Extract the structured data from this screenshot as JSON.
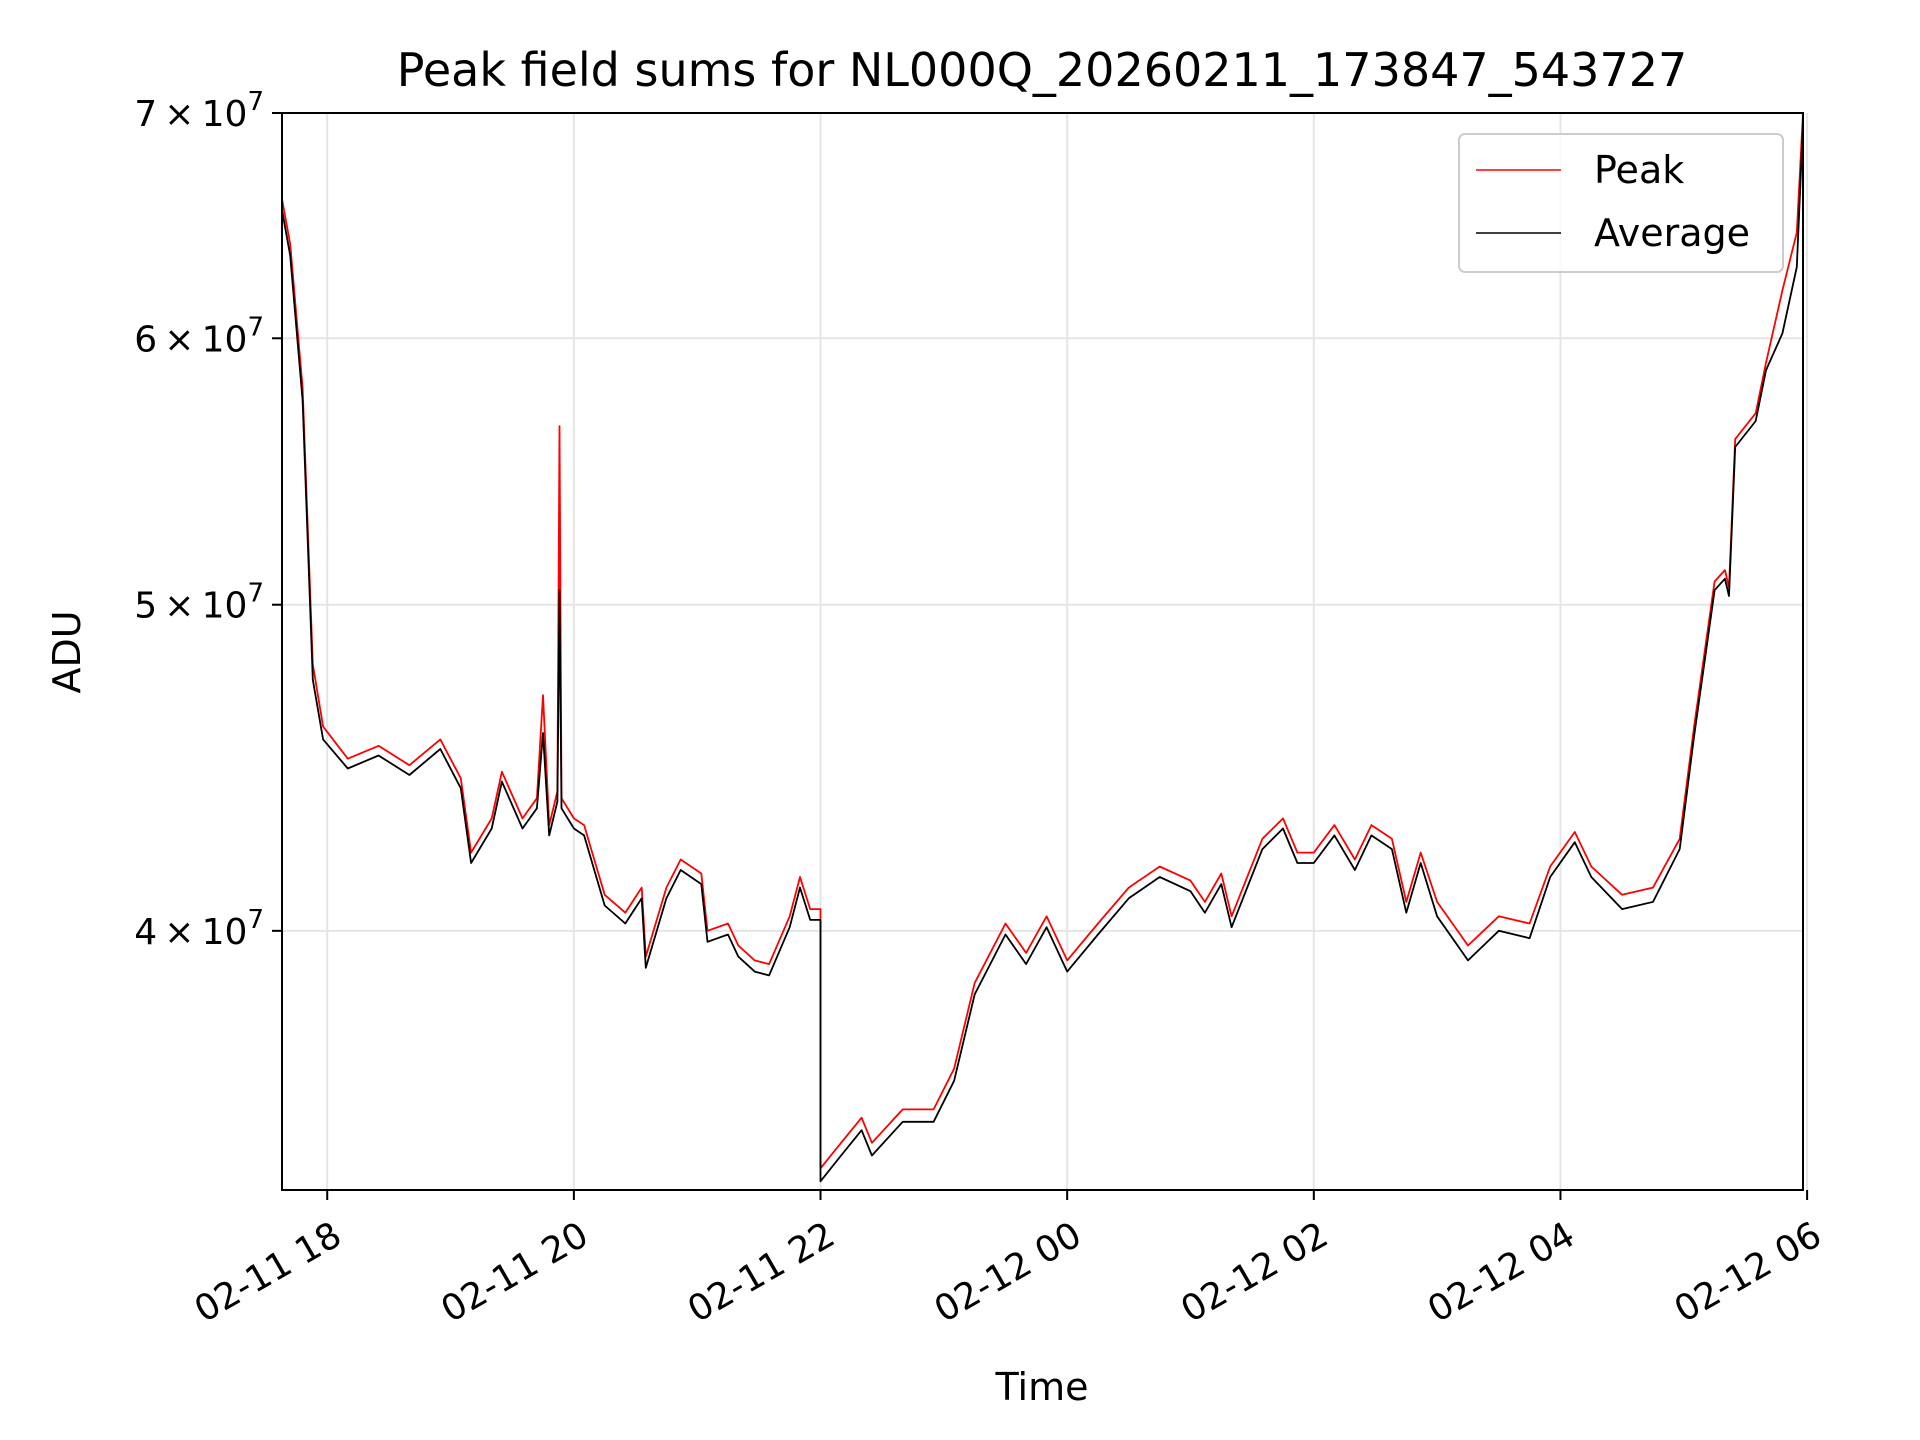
{
  "chart_data": {
    "type": "line",
    "title": "Peak field sums for NL000Q_20260211_173847_543727",
    "xlabel": "Time",
    "ylabel": "ADU",
    "yscale": "log",
    "ylim": [
      33500000,
      70000000
    ],
    "xlim": [
      "2026-02-11 17:38",
      "2026-02-12 05:58"
    ],
    "grid": true,
    "legend_position": "top-right",
    "x_ticks": [
      {
        "value": "2026-02-11 18:00",
        "label": "02-11 18"
      },
      {
        "value": "2026-02-11 20:00",
        "label": "02-11 20"
      },
      {
        "value": "2026-02-11 22:00",
        "label": "02-11 22"
      },
      {
        "value": "2026-02-12 00:00",
        "label": "02-12 00"
      },
      {
        "value": "2026-02-12 02:00",
        "label": "02-12 02"
      },
      {
        "value": "2026-02-12 04:00",
        "label": "02-12 04"
      },
      {
        "value": "2026-02-12 06:00",
        "label": "02-12 06"
      }
    ],
    "y_ticks": [
      {
        "value": 40000000,
        "mantissa": "4",
        "exponent": "7"
      },
      {
        "value": 50000000,
        "mantissa": "5",
        "exponent": "7"
      },
      {
        "value": 60000000,
        "mantissa": "6",
        "exponent": "7"
      },
      {
        "value": 70000000,
        "mantissa": "7",
        "exponent": "7"
      }
    ],
    "series": [
      {
        "name": "Peak",
        "color": "#ff0000",
        "points": [
          [
            "2026-02-11 17:38",
            66000000
          ],
          [
            "2026-02-11 17:42",
            64000000
          ],
          [
            "2026-02-11 17:48",
            58000000
          ],
          [
            "2026-02-11 17:53",
            48000000
          ],
          [
            "2026-02-11 17:58",
            46000000
          ],
          [
            "2026-02-11 18:10",
            45000000
          ],
          [
            "2026-02-11 18:25",
            45400000
          ],
          [
            "2026-02-11 18:40",
            44800000
          ],
          [
            "2026-02-11 18:55",
            45600000
          ],
          [
            "2026-02-11 19:05",
            44400000
          ],
          [
            "2026-02-11 19:10",
            42200000
          ],
          [
            "2026-02-11 19:20",
            43200000
          ],
          [
            "2026-02-11 19:25",
            44600000
          ],
          [
            "2026-02-11 19:35",
            43200000
          ],
          [
            "2026-02-11 19:42",
            43800000
          ],
          [
            "2026-02-11 19:45",
            47000000
          ],
          [
            "2026-02-11 19:48",
            43000000
          ],
          [
            "2026-02-11 19:52",
            44000000
          ],
          [
            "2026-02-11 19:53",
            56500000
          ],
          [
            "2026-02-11 19:54",
            43800000
          ],
          [
            "2026-02-11 20:00",
            43200000
          ],
          [
            "2026-02-11 20:05",
            43000000
          ],
          [
            "2026-02-11 20:15",
            41000000
          ],
          [
            "2026-02-11 20:25",
            40500000
          ],
          [
            "2026-02-11 20:33",
            41200000
          ],
          [
            "2026-02-11 20:35",
            39300000
          ],
          [
            "2026-02-11 20:45",
            41200000
          ],
          [
            "2026-02-11 20:52",
            42000000
          ],
          [
            "2026-02-11 21:02",
            41600000
          ],
          [
            "2026-02-11 21:05",
            40000000
          ],
          [
            "2026-02-11 21:15",
            40200000
          ],
          [
            "2026-02-11 21:20",
            39600000
          ],
          [
            "2026-02-11 21:28",
            39200000
          ],
          [
            "2026-02-11 21:35",
            39100000
          ],
          [
            "2026-02-11 21:45",
            40400000
          ],
          [
            "2026-02-11 21:50",
            41500000
          ],
          [
            "2026-02-11 21:55",
            40600000
          ],
          [
            "2026-02-11 22:00",
            40600000
          ],
          [
            "2026-02-11 22:00",
            34000000
          ],
          [
            "2026-02-11 22:10",
            34600000
          ],
          [
            "2026-02-11 22:20",
            35200000
          ],
          [
            "2026-02-11 22:25",
            34600000
          ],
          [
            "2026-02-11 22:40",
            35400000
          ],
          [
            "2026-02-11 22:55",
            35400000
          ],
          [
            "2026-02-11 23:05",
            36400000
          ],
          [
            "2026-02-11 23:15",
            38600000
          ],
          [
            "2026-02-11 23:30",
            40200000
          ],
          [
            "2026-02-11 23:40",
            39400000
          ],
          [
            "2026-02-11 23:50",
            40400000
          ],
          [
            "2026-02-12 00:00",
            39200000
          ],
          [
            "2026-02-12 00:15",
            40200000
          ],
          [
            "2026-02-12 00:30",
            41200000
          ],
          [
            "2026-02-12 00:45",
            41800000
          ],
          [
            "2026-02-12 01:00",
            41400000
          ],
          [
            "2026-02-12 01:07",
            40800000
          ],
          [
            "2026-02-12 01:15",
            41600000
          ],
          [
            "2026-02-12 01:20",
            40400000
          ],
          [
            "2026-02-12 01:35",
            42600000
          ],
          [
            "2026-02-12 01:45",
            43200000
          ],
          [
            "2026-02-12 01:52",
            42200000
          ],
          [
            "2026-02-12 02:00",
            42200000
          ],
          [
            "2026-02-12 02:10",
            43000000
          ],
          [
            "2026-02-12 02:20",
            42000000
          ],
          [
            "2026-02-12 02:28",
            43000000
          ],
          [
            "2026-02-12 02:38",
            42600000
          ],
          [
            "2026-02-12 02:45",
            40800000
          ],
          [
            "2026-02-12 02:52",
            42200000
          ],
          [
            "2026-02-12 03:00",
            40800000
          ],
          [
            "2026-02-12 03:15",
            39600000
          ],
          [
            "2026-02-12 03:30",
            40400000
          ],
          [
            "2026-02-12 03:45",
            40200000
          ],
          [
            "2026-02-12 03:55",
            41800000
          ],
          [
            "2026-02-12 04:07",
            42800000
          ],
          [
            "2026-02-12 04:15",
            41800000
          ],
          [
            "2026-02-12 04:30",
            41000000
          ],
          [
            "2026-02-12 04:45",
            41200000
          ],
          [
            "2026-02-12 04:58",
            42600000
          ],
          [
            "2026-02-12 05:05",
            46000000
          ],
          [
            "2026-02-12 05:15",
            50800000
          ],
          [
            "2026-02-12 05:20",
            51200000
          ],
          [
            "2026-02-12 05:22",
            50600000
          ],
          [
            "2026-02-12 05:25",
            56000000
          ],
          [
            "2026-02-12 05:35",
            57000000
          ],
          [
            "2026-02-12 05:40",
            59000000
          ],
          [
            "2026-02-12 05:48",
            62000000
          ],
          [
            "2026-02-12 05:55",
            64500000
          ],
          [
            "2026-02-12 05:58",
            70000000
          ]
        ]
      },
      {
        "name": "Average",
        "color": "#000000",
        "points": [
          [
            "2026-02-11 17:38",
            65500000
          ],
          [
            "2026-02-11 17:42",
            63500000
          ],
          [
            "2026-02-11 17:48",
            57500000
          ],
          [
            "2026-02-11 17:53",
            47500000
          ],
          [
            "2026-02-11 17:58",
            45600000
          ],
          [
            "2026-02-11 18:10",
            44700000
          ],
          [
            "2026-02-11 18:25",
            45100000
          ],
          [
            "2026-02-11 18:40",
            44500000
          ],
          [
            "2026-02-11 18:55",
            45300000
          ],
          [
            "2026-02-11 19:05",
            44100000
          ],
          [
            "2026-02-11 19:10",
            41900000
          ],
          [
            "2026-02-11 19:20",
            42900000
          ],
          [
            "2026-02-11 19:25",
            44300000
          ],
          [
            "2026-02-11 19:35",
            42900000
          ],
          [
            "2026-02-11 19:42",
            43500000
          ],
          [
            "2026-02-11 19:45",
            45800000
          ],
          [
            "2026-02-11 19:48",
            42700000
          ],
          [
            "2026-02-11 19:52",
            43700000
          ],
          [
            "2026-02-11 19:53",
            50500000
          ],
          [
            "2026-02-11 19:54",
            43500000
          ],
          [
            "2026-02-11 20:00",
            42900000
          ],
          [
            "2026-02-11 20:05",
            42700000
          ],
          [
            "2026-02-11 20:15",
            40700000
          ],
          [
            "2026-02-11 20:25",
            40200000
          ],
          [
            "2026-02-11 20:33",
            40900000
          ],
          [
            "2026-02-11 20:35",
            39000000
          ],
          [
            "2026-02-11 20:45",
            40900000
          ],
          [
            "2026-02-11 20:52",
            41700000
          ],
          [
            "2026-02-11 21:02",
            41300000
          ],
          [
            "2026-02-11 21:05",
            39700000
          ],
          [
            "2026-02-11 21:15",
            39900000
          ],
          [
            "2026-02-11 21:20",
            39300000
          ],
          [
            "2026-02-11 21:28",
            38900000
          ],
          [
            "2026-02-11 21:35",
            38800000
          ],
          [
            "2026-02-11 21:45",
            40100000
          ],
          [
            "2026-02-11 21:50",
            41200000
          ],
          [
            "2026-02-11 21:55",
            40300000
          ],
          [
            "2026-02-11 22:00",
            40300000
          ],
          [
            "2026-02-11 22:00",
            33700000
          ],
          [
            "2026-02-11 22:10",
            34300000
          ],
          [
            "2026-02-11 22:20",
            34900000
          ],
          [
            "2026-02-11 22:25",
            34300000
          ],
          [
            "2026-02-11 22:40",
            35100000
          ],
          [
            "2026-02-11 22:55",
            35100000
          ],
          [
            "2026-02-11 23:05",
            36100000
          ],
          [
            "2026-02-11 23:15",
            38300000
          ],
          [
            "2026-02-11 23:30",
            39900000
          ],
          [
            "2026-02-11 23:40",
            39100000
          ],
          [
            "2026-02-11 23:50",
            40100000
          ],
          [
            "2026-02-12 00:00",
            38900000
          ],
          [
            "2026-02-12 00:15",
            39900000
          ],
          [
            "2026-02-12 00:30",
            40900000
          ],
          [
            "2026-02-12 00:45",
            41500000
          ],
          [
            "2026-02-12 01:00",
            41100000
          ],
          [
            "2026-02-12 01:07",
            40500000
          ],
          [
            "2026-02-12 01:15",
            41300000
          ],
          [
            "2026-02-12 01:20",
            40100000
          ],
          [
            "2026-02-12 01:35",
            42300000
          ],
          [
            "2026-02-12 01:45",
            42900000
          ],
          [
            "2026-02-12 01:52",
            41900000
          ],
          [
            "2026-02-12 02:00",
            41900000
          ],
          [
            "2026-02-12 02:10",
            42700000
          ],
          [
            "2026-02-12 02:20",
            41700000
          ],
          [
            "2026-02-12 02:28",
            42700000
          ],
          [
            "2026-02-12 02:38",
            42300000
          ],
          [
            "2026-02-12 02:45",
            40500000
          ],
          [
            "2026-02-12 02:52",
            41900000
          ],
          [
            "2026-02-12 03:00",
            40400000
          ],
          [
            "2026-02-12 03:15",
            39200000
          ],
          [
            "2026-02-12 03:30",
            40000000
          ],
          [
            "2026-02-12 03:45",
            39800000
          ],
          [
            "2026-02-12 03:55",
            41500000
          ],
          [
            "2026-02-12 04:07",
            42500000
          ],
          [
            "2026-02-12 04:15",
            41500000
          ],
          [
            "2026-02-12 04:30",
            40600000
          ],
          [
            "2026-02-12 04:45",
            40800000
          ],
          [
            "2026-02-12 04:58",
            42300000
          ],
          [
            "2026-02-12 05:05",
            45700000
          ],
          [
            "2026-02-12 05:15",
            50500000
          ],
          [
            "2026-02-12 05:20",
            50900000
          ],
          [
            "2026-02-12 05:22",
            50300000
          ],
          [
            "2026-02-12 05:25",
            55700000
          ],
          [
            "2026-02-12 05:35",
            56700000
          ],
          [
            "2026-02-12 05:40",
            58700000
          ],
          [
            "2026-02-12 05:48",
            60200000
          ],
          [
            "2026-02-12 05:55",
            63000000
          ],
          [
            "2026-02-12 05:58",
            69500000
          ]
        ]
      }
    ]
  }
}
